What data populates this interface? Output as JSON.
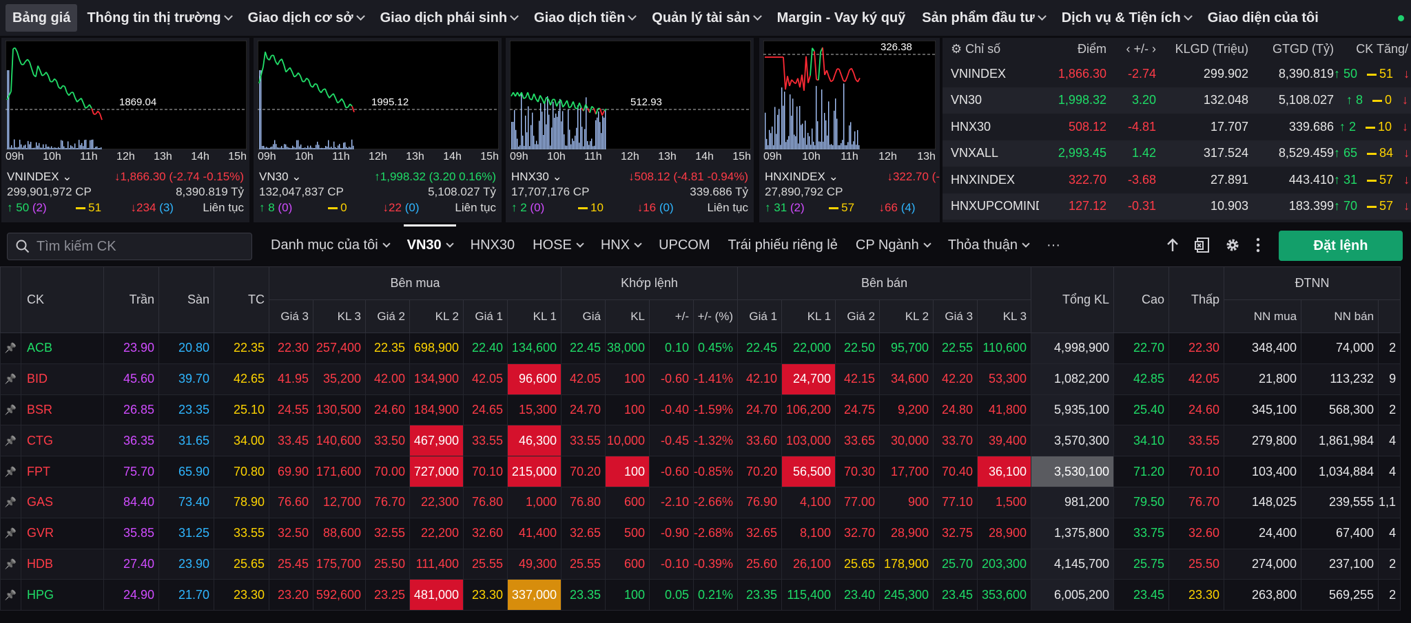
{
  "nav": {
    "items": [
      {
        "label": "Bảng giá",
        "active": true,
        "dropdown": false
      },
      {
        "label": "Thông tin thị trường",
        "dropdown": true
      },
      {
        "label": "Giao dịch cơ sở",
        "dropdown": true
      },
      {
        "label": "Giao dịch phái sinh",
        "dropdown": true
      },
      {
        "label": "Giao dịch tiền",
        "dropdown": true
      },
      {
        "label": "Quản lý tài sản",
        "dropdown": true
      },
      {
        "label": "Margin - Vay ký quỹ",
        "dropdown": false
      },
      {
        "label": "Sản phẩm đầu tư",
        "dropdown": true
      },
      {
        "label": "Dịch vụ & Tiện ích",
        "dropdown": true
      },
      {
        "label": "Giao diện của tôi",
        "dropdown": false
      }
    ]
  },
  "mini_charts": [
    {
      "name": "VNINDEX",
      "ref_label": "1869.04",
      "change": "1,866.30 (-2.74 -0.15%)",
      "dir": "down",
      "volume": "299,901,972 CP",
      "value": "8,390.819 Tỷ",
      "up": "50",
      "ceil": "2",
      "ref": "51",
      "down": "234",
      "floor": "3",
      "status": "Liên tục",
      "hours": [
        "09h",
        "10h",
        "11h",
        "12h",
        "13h",
        "14h",
        "15h"
      ]
    },
    {
      "name": "VN30",
      "ref_label": "1995.12",
      "change": "1,998.32 (3.20 0.16%)",
      "dir": "up",
      "volume": "132,047,837 CP",
      "value": "5,108.027 Tỷ",
      "up": "8",
      "ceil": "0",
      "ref": "0",
      "down": "22",
      "floor": "0",
      "status": "Liên tục",
      "hours": [
        "09h",
        "10h",
        "11h",
        "12h",
        "13h",
        "14h",
        "15h"
      ]
    },
    {
      "name": "HNX30",
      "ref_label": "512.93",
      "change": "508.12 (-4.81 -0.94%)",
      "dir": "down",
      "volume": "17,707,176 CP",
      "value": "339.686 Tỷ",
      "up": "2",
      "ceil": "0",
      "ref": "10",
      "down": "16",
      "floor": "0",
      "status": "Liên tục",
      "hours": [
        "09h",
        "10h",
        "11h",
        "12h",
        "13h",
        "14h",
        "15h"
      ]
    },
    {
      "name": "HNXINDEX",
      "ref_label": "326.38",
      "change": "322.70 (-",
      "dir": "down",
      "volume": "27,890,792 CP",
      "value": "",
      "up": "31",
      "ceil": "2",
      "ref": "57",
      "down": "66",
      "floor": "4",
      "status": "",
      "hours": [
        "09h",
        "10h",
        "11h",
        "12h",
        "13h"
      ]
    }
  ],
  "index_table": {
    "headers": [
      "Chỉ số",
      "Điểm",
      "+/-",
      "KLGD (Triệu)",
      "GTGD (Tỷ)",
      "CK Tăng/"
    ],
    "rows": [
      {
        "name": "VNINDEX",
        "point": "1,866.30",
        "chg": "-2.74",
        "vol": "299.902",
        "val": "8,390.819",
        "up": "50",
        "ref": "51",
        "pc": "dn"
      },
      {
        "name": "VN30",
        "point": "1,998.32",
        "chg": "3.20",
        "vol": "132.048",
        "val": "5,108.027",
        "up": "8",
        "ref": "0",
        "pc": "up"
      },
      {
        "name": "HNX30",
        "point": "508.12",
        "chg": "-4.81",
        "vol": "17.707",
        "val": "339.686",
        "up": "2",
        "ref": "10",
        "pc": "dn"
      },
      {
        "name": "VNXALL",
        "point": "2,993.45",
        "chg": "1.42",
        "vol": "317.524",
        "val": "8,529.459",
        "up": "65",
        "ref": "84",
        "pc": "up"
      },
      {
        "name": "HNXINDEX",
        "point": "322.70",
        "chg": "-3.68",
        "vol": "27.891",
        "val": "443.410",
        "up": "31",
        "ref": "57",
        "pc": "dn"
      },
      {
        "name": "HNXUPCOMINDEX",
        "point": "127.12",
        "chg": "-0.31",
        "vol": "10.903",
        "val": "183.399",
        "up": "70",
        "ref": "57",
        "pc": "dn"
      }
    ]
  },
  "toolbar": {
    "search_placeholder": "Tìm kiếm CK",
    "tabs": [
      {
        "label": "Danh mục của tôi",
        "dropdown": true
      },
      {
        "label": "VN30",
        "dropdown": true,
        "active": true
      },
      {
        "label": "HNX30",
        "dropdown": false
      },
      {
        "label": "HOSE",
        "dropdown": true
      },
      {
        "label": "HNX",
        "dropdown": true
      },
      {
        "label": "UPCOM",
        "dropdown": false
      },
      {
        "label": "Trái phiếu riêng lẻ",
        "dropdown": false
      },
      {
        "label": "CP Ngành",
        "dropdown": true
      },
      {
        "label": "Thỏa thuận",
        "dropdown": true
      },
      {
        "label": "···",
        "dropdown": false
      }
    ],
    "order_label": "Đặt lệnh"
  },
  "board": {
    "h_ck": "CK",
    "h_tran": "Trần",
    "h_san": "Sàn",
    "h_tc": "TC",
    "h_buy": "Bên mua",
    "h_match": "Khớp lệnh",
    "h_sell": "Bên bán",
    "h_total": "Tổng KL",
    "h_high": "Cao",
    "h_low": "Thấp",
    "h_foreign": "ĐTNN",
    "sub_buy": [
      "Giá 3",
      "KL 3",
      "Giá 2",
      "KL 2",
      "Giá 1",
      "KL 1"
    ],
    "sub_match": [
      "Giá",
      "KL",
      "+/-",
      "+/- (%)"
    ],
    "sub_sell": [
      "Giá 1",
      "KL 1",
      "Giá 2",
      "KL 2",
      "Giá 3",
      "KL 3"
    ],
    "sub_foreign": [
      "NN mua",
      "NN bán",
      ""
    ],
    "rows": [
      {
        "s": "ACB",
        "c": "up",
        "tran": "23.90",
        "san": "20.80",
        "tc": "22.35",
        "b": [
          [
            "22.30",
            "dn"
          ],
          [
            "257,400",
            "dn"
          ],
          [
            "22.35",
            "ref"
          ],
          [
            "698,900",
            "ref"
          ],
          [
            "22.40",
            "up"
          ],
          [
            "134,600",
            "up"
          ]
        ],
        "m": [
          [
            "22.45",
            "up"
          ],
          [
            "38,000",
            "up"
          ],
          [
            "0.10",
            "up"
          ],
          [
            "0.45%",
            "up"
          ]
        ],
        "a": [
          [
            "22.45",
            "up"
          ],
          [
            "22,000",
            "up"
          ],
          [
            "22.50",
            "up"
          ],
          [
            "95,700",
            "up"
          ],
          [
            "22.55",
            "up"
          ],
          [
            "110,600",
            "up"
          ]
        ],
        "tot": "4,998,900",
        "hi": [
          "22.70",
          "up"
        ],
        "lo": [
          "22.30",
          "dn"
        ],
        "nnm": "348,400",
        "nnb": "74,000",
        "x": "2"
      },
      {
        "s": "BID",
        "c": "dn",
        "tran": "45.60",
        "san": "39.70",
        "tc": "42.65",
        "b": [
          [
            "41.95",
            "dn"
          ],
          [
            "35,200",
            "dn"
          ],
          [
            "42.00",
            "dn"
          ],
          [
            "134,900",
            "dn"
          ],
          [
            "42.05",
            "dn"
          ],
          [
            "96,600",
            "hl-red"
          ]
        ],
        "m": [
          [
            "42.05",
            "dn"
          ],
          [
            "100",
            "dn"
          ],
          [
            "-0.60",
            "dn"
          ],
          [
            "-1.41%",
            "dn"
          ]
        ],
        "a": [
          [
            "42.10",
            "dn"
          ],
          [
            "24,700",
            "hl-red"
          ],
          [
            "42.15",
            "dn"
          ],
          [
            "34,600",
            "dn"
          ],
          [
            "42.20",
            "dn"
          ],
          [
            "53,300",
            "dn"
          ]
        ],
        "tot": "1,082,200",
        "hi": [
          "42.85",
          "up"
        ],
        "lo": [
          "42.05",
          "dn"
        ],
        "nnm": "21,800",
        "nnb": "113,232",
        "x": "9"
      },
      {
        "s": "BSR",
        "c": "dn",
        "tran": "26.85",
        "san": "23.35",
        "tc": "25.10",
        "b": [
          [
            "24.55",
            "dn"
          ],
          [
            "130,500",
            "dn"
          ],
          [
            "24.60",
            "dn"
          ],
          [
            "184,900",
            "dn"
          ],
          [
            "24.65",
            "dn"
          ],
          [
            "15,300",
            "dn"
          ]
        ],
        "m": [
          [
            "24.70",
            "dn"
          ],
          [
            "100",
            "dn"
          ],
          [
            "-0.40",
            "dn"
          ],
          [
            "-1.59%",
            "dn"
          ]
        ],
        "a": [
          [
            "24.70",
            "dn"
          ],
          [
            "106,200",
            "dn"
          ],
          [
            "24.75",
            "dn"
          ],
          [
            "9,200",
            "dn"
          ],
          [
            "24.80",
            "dn"
          ],
          [
            "41,800",
            "dn"
          ]
        ],
        "tot": "5,935,100",
        "hi": [
          "25.40",
          "up"
        ],
        "lo": [
          "24.60",
          "dn"
        ],
        "nnm": "345,100",
        "nnb": "568,300",
        "x": "2"
      },
      {
        "s": "CTG",
        "c": "dn",
        "tran": "36.35",
        "san": "31.65",
        "tc": "34.00",
        "b": [
          [
            "33.45",
            "dn"
          ],
          [
            "140,600",
            "dn"
          ],
          [
            "33.50",
            "dn"
          ],
          [
            "467,900",
            "hl-red"
          ],
          [
            "33.55",
            "dn"
          ],
          [
            "46,300",
            "hl-red"
          ]
        ],
        "m": [
          [
            "33.55",
            "dn"
          ],
          [
            "10,000",
            "dn"
          ],
          [
            "-0.45",
            "dn"
          ],
          [
            "-1.32%",
            "dn"
          ]
        ],
        "a": [
          [
            "33.60",
            "dn"
          ],
          [
            "103,000",
            "dn"
          ],
          [
            "33.65",
            "dn"
          ],
          [
            "30,000",
            "dn"
          ],
          [
            "33.70",
            "dn"
          ],
          [
            "39,400",
            "dn"
          ]
        ],
        "tot": "3,570,300",
        "hi": [
          "34.10",
          "up"
        ],
        "lo": [
          "33.55",
          "dn"
        ],
        "nnm": "279,800",
        "nnb": "1,861,984",
        "x": "4"
      },
      {
        "s": "FPT",
        "c": "dn",
        "tran": "75.70",
        "san": "65.90",
        "tc": "70.80",
        "b": [
          [
            "69.90",
            "dn"
          ],
          [
            "171,600",
            "dn"
          ],
          [
            "70.00",
            "dn"
          ],
          [
            "727,000",
            "hl-red"
          ],
          [
            "70.10",
            "dn"
          ],
          [
            "215,000",
            "hl-red"
          ]
        ],
        "m": [
          [
            "70.20",
            "dn"
          ],
          [
            "100",
            "hl-red"
          ],
          [
            "-0.60",
            "dn"
          ],
          [
            "-0.85%",
            "dn"
          ]
        ],
        "a": [
          [
            "70.20",
            "dn"
          ],
          [
            "56,500",
            "hl-red"
          ],
          [
            "70.30",
            "dn"
          ],
          [
            "17,700",
            "dn"
          ],
          [
            "70.40",
            "dn"
          ],
          [
            "36,100",
            "hl-red"
          ]
        ],
        "tot": "3,530,100",
        "tothl": true,
        "hi": [
          "71.20",
          "up"
        ],
        "lo": [
          "70.10",
          "dn"
        ],
        "nnm": "103,400",
        "nnb": "1,034,884",
        "x": "4"
      },
      {
        "s": "GAS",
        "c": "dn",
        "tran": "84.40",
        "san": "73.40",
        "tc": "78.90",
        "b": [
          [
            "76.60",
            "dn"
          ],
          [
            "12,700",
            "dn"
          ],
          [
            "76.70",
            "dn"
          ],
          [
            "22,300",
            "dn"
          ],
          [
            "76.80",
            "dn"
          ],
          [
            "1,000",
            "dn"
          ]
        ],
        "m": [
          [
            "76.80",
            "dn"
          ],
          [
            "600",
            "dn"
          ],
          [
            "-2.10",
            "dn"
          ],
          [
            "-2.66%",
            "dn"
          ]
        ],
        "a": [
          [
            "76.90",
            "dn"
          ],
          [
            "4,100",
            "dn"
          ],
          [
            "77.00",
            "dn"
          ],
          [
            "900",
            "dn"
          ],
          [
            "77.10",
            "dn"
          ],
          [
            "1,500",
            "dn"
          ]
        ],
        "tot": "981,200",
        "hi": [
          "79.50",
          "up"
        ],
        "lo": [
          "76.70",
          "dn"
        ],
        "nnm": "148,025",
        "nnb": "239,555",
        "x": "1,1"
      },
      {
        "s": "GVR",
        "c": "dn",
        "tran": "35.85",
        "san": "31.25",
        "tc": "33.55",
        "b": [
          [
            "32.50",
            "dn"
          ],
          [
            "88,600",
            "dn"
          ],
          [
            "32.55",
            "dn"
          ],
          [
            "22,200",
            "dn"
          ],
          [
            "32.60",
            "dn"
          ],
          [
            "41,400",
            "dn"
          ]
        ],
        "m": [
          [
            "32.65",
            "dn"
          ],
          [
            "500",
            "dn"
          ],
          [
            "-0.90",
            "dn"
          ],
          [
            "-2.68%",
            "dn"
          ]
        ],
        "a": [
          [
            "32.65",
            "dn"
          ],
          [
            "8,100",
            "dn"
          ],
          [
            "32.70",
            "dn"
          ],
          [
            "28,900",
            "dn"
          ],
          [
            "32.75",
            "dn"
          ],
          [
            "28,900",
            "dn"
          ]
        ],
        "tot": "1,375,800",
        "hi": [
          "33.75",
          "up"
        ],
        "lo": [
          "32.60",
          "dn"
        ],
        "nnm": "24,400",
        "nnb": "67,400",
        "x": "4"
      },
      {
        "s": "HDB",
        "c": "dn",
        "tran": "27.40",
        "san": "23.90",
        "tc": "25.65",
        "b": [
          [
            "25.45",
            "dn"
          ],
          [
            "175,700",
            "dn"
          ],
          [
            "25.50",
            "dn"
          ],
          [
            "111,400",
            "dn"
          ],
          [
            "25.55",
            "dn"
          ],
          [
            "49,300",
            "dn"
          ]
        ],
        "m": [
          [
            "25.55",
            "dn"
          ],
          [
            "600",
            "dn"
          ],
          [
            "-0.10",
            "dn"
          ],
          [
            "-0.39%",
            "dn"
          ]
        ],
        "a": [
          [
            "25.60",
            "dn"
          ],
          [
            "26,100",
            "dn"
          ],
          [
            "25.65",
            "ref"
          ],
          [
            "178,900",
            "ref"
          ],
          [
            "25.70",
            "up"
          ],
          [
            "203,300",
            "up"
          ]
        ],
        "tot": "4,145,700",
        "hi": [
          "25.75",
          "up"
        ],
        "lo": [
          "25.50",
          "dn"
        ],
        "nnm": "274,000",
        "nnb": "237,100",
        "x": "2"
      },
      {
        "s": "HPG",
        "c": "up",
        "tran": "24.90",
        "san": "21.70",
        "tc": "23.30",
        "b": [
          [
            "23.20",
            "dn"
          ],
          [
            "592,600",
            "dn"
          ],
          [
            "23.25",
            "dn"
          ],
          [
            "481,000",
            "hl-red"
          ],
          [
            "23.30",
            "ref"
          ],
          [
            "337,000",
            "hl-orange"
          ]
        ],
        "m": [
          [
            "23.35",
            "up"
          ],
          [
            "100",
            "up"
          ],
          [
            "0.05",
            "up"
          ],
          [
            "0.21%",
            "up"
          ]
        ],
        "a": [
          [
            "23.35",
            "up"
          ],
          [
            "115,400",
            "up"
          ],
          [
            "23.40",
            "up"
          ],
          [
            "245,300",
            "up"
          ],
          [
            "23.45",
            "up"
          ],
          [
            "353,600",
            "up"
          ]
        ],
        "tot": "6,005,200",
        "hi": [
          "23.45",
          "up"
        ],
        "lo": [
          "23.30",
          "ref"
        ],
        "nnm": "263,800",
        "nnb": "569,255",
        "x": "2"
      }
    ]
  }
}
